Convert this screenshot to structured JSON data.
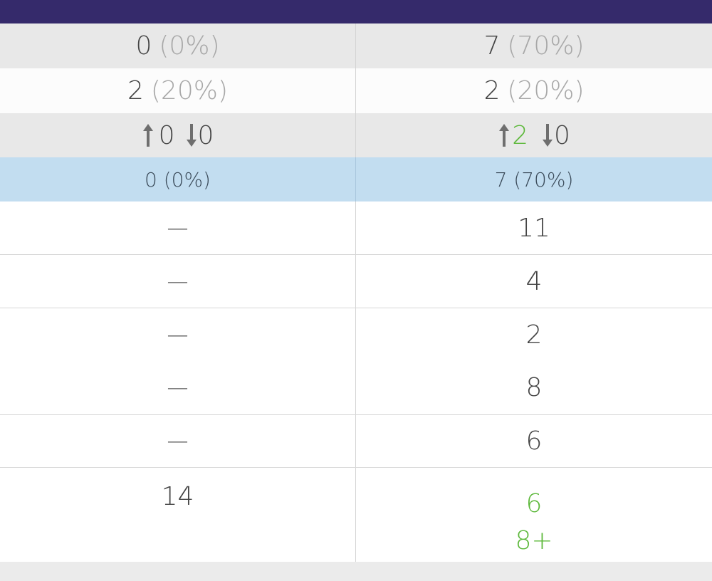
{
  "colors": {
    "header": "#352a6b",
    "accent_green": "#5cb83a",
    "highlight_row": "#c2ddf0"
  },
  "rows": {
    "row1": {
      "left_value": "0",
      "left_pct": "(0%)",
      "right_value": "7",
      "right_pct": "(70%)"
    },
    "row2": {
      "left_value": "2",
      "left_pct": "(20%)",
      "right_value": "2",
      "right_pct": "(20%)"
    },
    "row3": {
      "left_up": "0",
      "left_down": "0",
      "right_up": "2",
      "right_down": "0",
      "icons": {
        "up": "arrow-up-icon",
        "down": "arrow-down-icon"
      }
    },
    "row4": {
      "left": "0 (0%)",
      "right": "7 (70%)"
    },
    "row5": {
      "left": "—",
      "right": "11"
    },
    "row6": {
      "left": "—",
      "right": "4"
    },
    "row7": {
      "left_top": "—",
      "right_top": "2",
      "left_bottom": "—",
      "right_bottom": "8"
    },
    "row8": {
      "left": "—",
      "right": "6"
    },
    "row9": {
      "left": "14",
      "right_top": "6",
      "right_bottom": "8+"
    }
  }
}
